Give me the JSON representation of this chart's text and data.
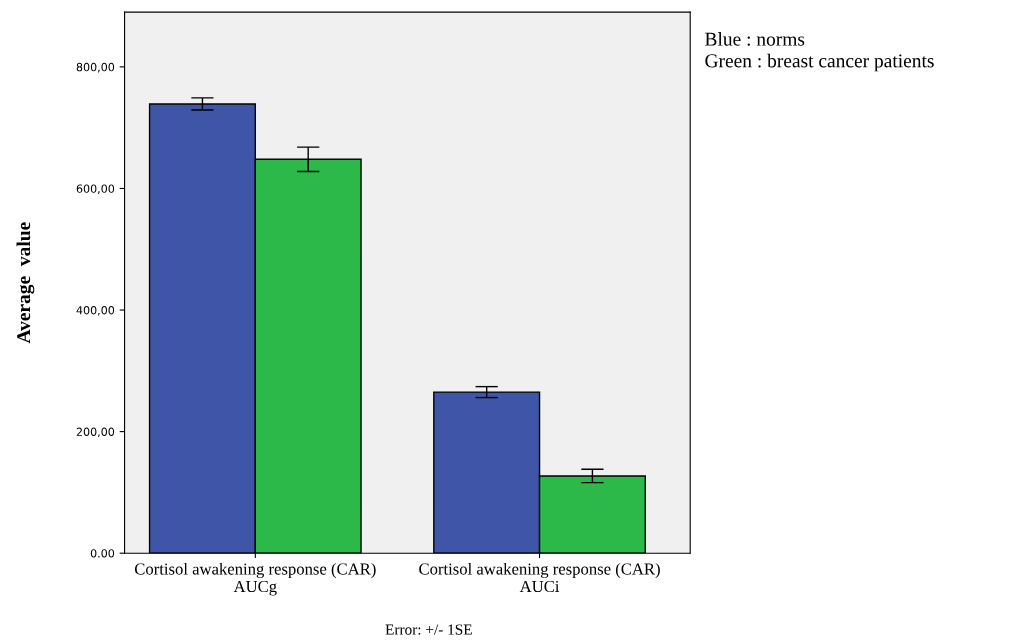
{
  "chart_data": {
    "type": "bar",
    "ylabel": "Average  value",
    "categories": [
      "Cortisol awakening response (CAR)\nAUCg",
      "Cortisol awakening response (CAR)\nAUCi"
    ],
    "series": [
      {
        "color": "#3f56a8",
        "values": [
          739,
          265
        ],
        "errors": [
          10,
          9
        ]
      },
      {
        "color": "#2db84a",
        "values": [
          648,
          127
        ],
        "errors": [
          20,
          11
        ]
      }
    ],
    "ylim": [
      0,
      890
    ],
    "yticks": [
      {
        "value": 0,
        "label": "0.00"
      },
      {
        "value": 200,
        "label": "200,00"
      },
      {
        "value": 400,
        "label": "400,00"
      },
      {
        "value": 600,
        "label": "600,00"
      },
      {
        "value": 800,
        "label": "800,00"
      }
    ],
    "grid": false,
    "legend": false,
    "annotations": [
      "Blue : norms\nGreen : breast cancer patients",
      "Error: +/- 1SE"
    ]
  }
}
